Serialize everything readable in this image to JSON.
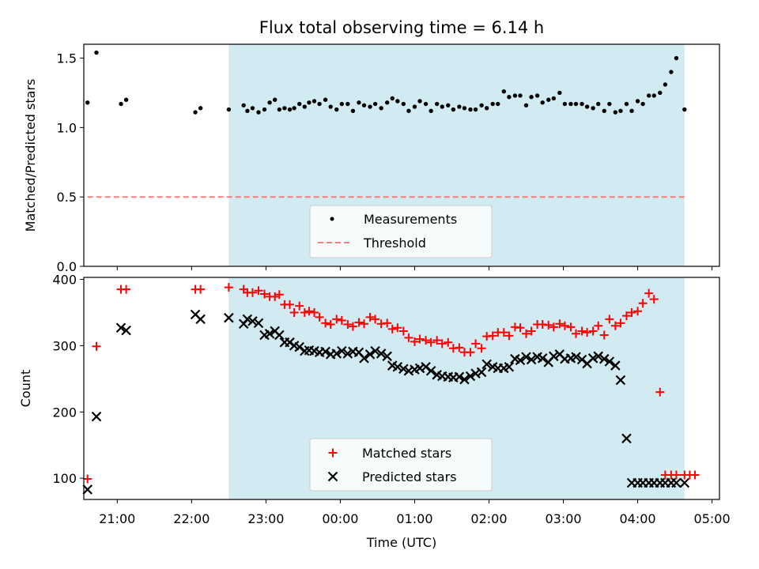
{
  "title": "Flux total observing time = 6.14 h",
  "colors": {
    "shade": "#add8e6",
    "measurement": "#000000",
    "threshold": "#f08080",
    "matched": "#ff0000",
    "predicted": "#000000"
  },
  "x_axis": {
    "label": "Time (UTC)",
    "ticks": [
      "21:00",
      "22:00",
      "23:00",
      "00:00",
      "01:00",
      "02:00",
      "03:00",
      "04:00",
      "05:00"
    ],
    "range_hours": [
      20.55,
      29.1
    ],
    "shaded_span_hours": [
      22.5,
      28.63
    ]
  },
  "chart_data": [
    {
      "type": "scatter",
      "ylabel": "Matched/Predicted stars",
      "ylim": [
        0,
        1.6
      ],
      "yticks": [
        "0.0",
        "0.5",
        "1.0",
        "1.5"
      ],
      "legend": {
        "position": "lower center",
        "entries": [
          "Measurements",
          "Threshold"
        ]
      },
      "threshold": {
        "name": "Threshold",
        "value": 0.5,
        "x_range": [
          20.6,
          28.63
        ]
      },
      "series": [
        {
          "name": "Measurements",
          "x": [
            20.6,
            20.72,
            21.05,
            21.12,
            22.05,
            22.12,
            22.5,
            22.7,
            22.75,
            22.82,
            22.9,
            22.98,
            23.05,
            23.12,
            23.18,
            23.25,
            23.32,
            23.38,
            23.45,
            23.52,
            23.58,
            23.65,
            23.72,
            23.8,
            23.87,
            23.95,
            24.02,
            24.1,
            24.17,
            24.25,
            24.32,
            24.4,
            24.47,
            24.55,
            24.63,
            24.7,
            24.77,
            24.85,
            24.92,
            25.0,
            25.07,
            25.15,
            25.22,
            25.3,
            25.37,
            25.45,
            25.52,
            25.6,
            25.67,
            25.75,
            25.82,
            25.9,
            25.97,
            26.05,
            26.12,
            26.2,
            26.27,
            26.35,
            26.42,
            26.5,
            26.57,
            26.65,
            26.72,
            26.8,
            26.87,
            26.95,
            27.02,
            27.1,
            27.17,
            27.25,
            27.32,
            27.4,
            27.47,
            27.55,
            27.62,
            27.7,
            27.77,
            27.85,
            27.92,
            28.0,
            28.07,
            28.15,
            28.22,
            28.3,
            28.37,
            28.45,
            28.52,
            28.63
          ],
          "y": [
            1.18,
            1.54,
            1.17,
            1.2,
            1.11,
            1.14,
            1.13,
            1.16,
            1.12,
            1.14,
            1.11,
            1.13,
            1.18,
            1.2,
            1.13,
            1.14,
            1.13,
            1.14,
            1.17,
            1.15,
            1.18,
            1.19,
            1.17,
            1.2,
            1.15,
            1.13,
            1.17,
            1.17,
            1.12,
            1.18,
            1.16,
            1.15,
            1.17,
            1.14,
            1.18,
            1.21,
            1.19,
            1.17,
            1.12,
            1.15,
            1.19,
            1.17,
            1.12,
            1.17,
            1.15,
            1.16,
            1.13,
            1.15,
            1.14,
            1.13,
            1.13,
            1.16,
            1.14,
            1.17,
            1.17,
            1.26,
            1.22,
            1.23,
            1.23,
            1.16,
            1.22,
            1.23,
            1.18,
            1.2,
            1.21,
            1.25,
            1.17,
            1.17,
            1.17,
            1.17,
            1.15,
            1.14,
            1.17,
            1.12,
            1.17,
            1.11,
            1.12,
            1.17,
            1.12,
            1.19,
            1.17,
            1.23,
            1.23,
            1.25,
            1.31,
            1.4,
            1.5,
            1.13
          ]
        }
      ]
    },
    {
      "type": "scatter",
      "ylabel": "Count",
      "ylim": [
        68,
        403
      ],
      "yticks": [
        "100",
        "200",
        "300",
        "400"
      ],
      "legend": {
        "position": "lower center",
        "entries": [
          "Matched stars",
          "Predicted stars"
        ]
      },
      "series": [
        {
          "name": "Matched stars",
          "x": [
            20.6,
            20.72,
            21.05,
            21.12,
            22.05,
            22.12,
            22.5,
            22.7,
            22.75,
            22.82,
            22.9,
            22.98,
            23.05,
            23.12,
            23.18,
            23.25,
            23.32,
            23.38,
            23.45,
            23.52,
            23.58,
            23.65,
            23.72,
            23.8,
            23.87,
            23.95,
            24.02,
            24.1,
            24.17,
            24.25,
            24.32,
            24.4,
            24.47,
            24.55,
            24.63,
            24.7,
            24.77,
            24.85,
            24.92,
            25.0,
            25.07,
            25.15,
            25.22,
            25.3,
            25.37,
            25.45,
            25.52,
            25.6,
            25.67,
            25.75,
            25.82,
            25.9,
            25.97,
            26.05,
            26.12,
            26.2,
            26.27,
            26.35,
            26.42,
            26.5,
            26.57,
            26.65,
            26.72,
            26.8,
            26.87,
            26.95,
            27.02,
            27.1,
            27.17,
            27.25,
            27.32,
            27.4,
            27.47,
            27.55,
            27.62,
            27.7,
            27.77,
            27.85,
            27.92,
            28.0,
            28.07,
            28.15,
            28.22,
            28.3,
            28.37,
            28.45,
            28.52,
            28.63,
            28.7,
            28.77
          ],
          "y": [
            99,
            299,
            385,
            385,
            385,
            385,
            388,
            385,
            380,
            380,
            383,
            378,
            374,
            374,
            377,
            362,
            362,
            350,
            360,
            350,
            352,
            350,
            343,
            334,
            332,
            340,
            338,
            332,
            329,
            335,
            333,
            343,
            340,
            333,
            334,
            325,
            327,
            322,
            312,
            306,
            310,
            308,
            305,
            308,
            303,
            305,
            296,
            297,
            290,
            290,
            303,
            296,
            314,
            315,
            320,
            320,
            315,
            328,
            327,
            318,
            322,
            332,
            332,
            331,
            328,
            333,
            330,
            328,
            318,
            322,
            320,
            322,
            330,
            316,
            340,
            330,
            334,
            345,
            350,
            352,
            364,
            379,
            370,
            230,
            105,
            105,
            105,
            105,
            105,
            105
          ],
          "note": ""
        },
        {
          "name": "Predicted stars",
          "x": [
            20.6,
            20.72,
            21.05,
            21.12,
            22.05,
            22.12,
            22.5,
            22.7,
            22.75,
            22.82,
            22.9,
            22.98,
            23.05,
            23.12,
            23.18,
            23.25,
            23.32,
            23.38,
            23.45,
            23.52,
            23.58,
            23.65,
            23.72,
            23.8,
            23.87,
            23.95,
            24.02,
            24.1,
            24.17,
            24.25,
            24.32,
            24.4,
            24.47,
            24.55,
            24.63,
            24.7,
            24.77,
            24.85,
            24.92,
            25.0,
            25.07,
            25.15,
            25.22,
            25.3,
            25.37,
            25.45,
            25.52,
            25.6,
            25.67,
            25.75,
            25.82,
            25.9,
            25.97,
            26.05,
            26.12,
            26.2,
            26.27,
            26.35,
            26.42,
            26.5,
            26.57,
            26.65,
            26.72,
            26.8,
            26.87,
            26.95,
            27.02,
            27.1,
            27.17,
            27.25,
            27.32,
            27.4,
            27.47,
            27.55,
            27.62,
            27.7,
            27.77,
            27.85,
            27.92,
            28.0,
            28.07,
            28.15,
            28.22,
            28.3,
            28.37,
            28.45,
            28.52,
            28.63
          ],
          "y": [
            83,
            193,
            327,
            323,
            347,
            340,
            342,
            333,
            340,
            337,
            334,
            316,
            318,
            322,
            316,
            305,
            305,
            300,
            298,
            292,
            293,
            292,
            290,
            291,
            287,
            288,
            292,
            288,
            291,
            290,
            281,
            287,
            292,
            288,
            284,
            270,
            268,
            265,
            262,
            264,
            266,
            268,
            262,
            256,
            254,
            253,
            252,
            253,
            249,
            254,
            258,
            260,
            272,
            268,
            266,
            266,
            268,
            280,
            278,
            283,
            279,
            283,
            281,
            275,
            284,
            287,
            280,
            281,
            283,
            279,
            273,
            281,
            284,
            280,
            276,
            270,
            248,
            160,
            93,
            93,
            93,
            93,
            93,
            93,
            93,
            93,
            93,
            93
          ]
        }
      ]
    }
  ]
}
